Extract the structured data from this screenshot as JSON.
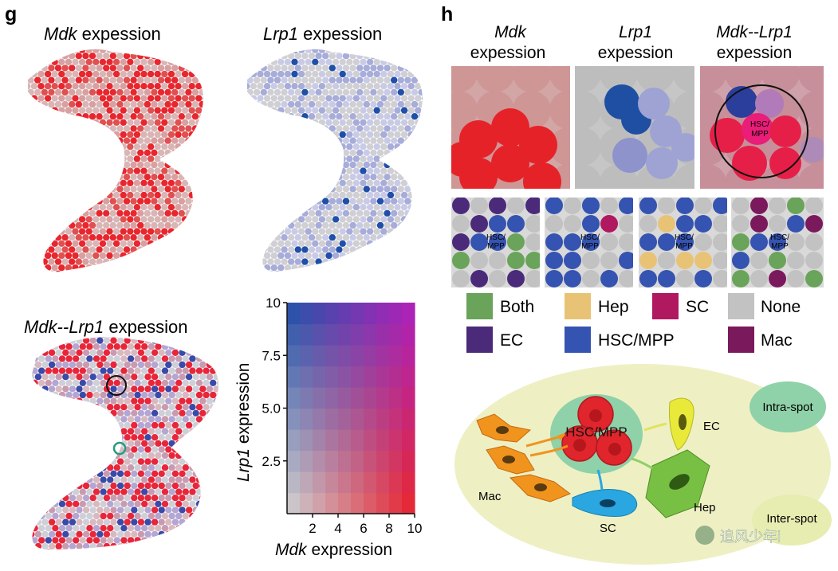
{
  "panels": {
    "g_label": "g",
    "h_label": "h"
  },
  "panel_g": {
    "titles": {
      "mdk": {
        "gene": "Mdk",
        "suffix": " expession"
      },
      "lrp1": {
        "gene": "Lrp1",
        "suffix": " expession"
      },
      "pair": {
        "gene": "Mdk--Lrp1",
        "suffix": " expession"
      }
    },
    "colors": {
      "mdk_high": "#e8262e",
      "mdk_low": "#d9b5b5",
      "lrp1_high": "#1f4fa8",
      "lrp1_low": "#c9cbe6",
      "none": "#cfcfd4"
    }
  },
  "chart_data": {
    "type": "heatmap",
    "title": "",
    "xlabel_gene": "Mdk",
    "xlabel_suffix": " expression",
    "ylabel_gene": "Lrp1",
    "ylabel_suffix": " expression",
    "x_ticks": [
      "2",
      "4",
      "6",
      "8",
      "10"
    ],
    "y_ticks": [
      "2.5",
      "5.0",
      "7.5",
      "10"
    ],
    "x_range": [
      0,
      10
    ],
    "y_range": [
      0,
      10
    ],
    "grid_cells": 10,
    "corner_colors": {
      "low_low": "#d3d3d3",
      "high_x_low_y": "#e8202a",
      "low_x_high_y": "#1e4ea6",
      "high_high": "#b020c0"
    }
  },
  "panel_h": {
    "col_titles": [
      {
        "line1": "Mdk",
        "line2": "expession"
      },
      {
        "line1": "Lrp1",
        "line2": "expession"
      },
      {
        "line1": "Mdk--Lrp1",
        "line2": "expession"
      }
    ],
    "hsc_label_line1": "HSC/",
    "hsc_label_line2": "MPP",
    "legend": [
      {
        "label": "Both",
        "color": "#6aa35a"
      },
      {
        "label": "Hep",
        "color": "#e8c376"
      },
      {
        "label": "SC",
        "color": "#b01860"
      },
      {
        "label": "None",
        "color": "#c2c2c2"
      },
      {
        "label": "EC",
        "color": "#4b2a7a"
      },
      {
        "label": "HSC/MPP",
        "color": "#3553b0"
      },
      {
        "label": "Mac",
        "color": "#7a1a5c"
      }
    ],
    "diagram": {
      "center_label": "HSC/MPP",
      "cells": [
        "EC",
        "Mac",
        "SC",
        "Hep"
      ],
      "intra_spot": "Intra-spot",
      "inter_spot": "Inter-spot",
      "ellipse_color": "#eef0c4",
      "intra_color": "#8fd1a8"
    }
  },
  "watermark": "追风少年i"
}
